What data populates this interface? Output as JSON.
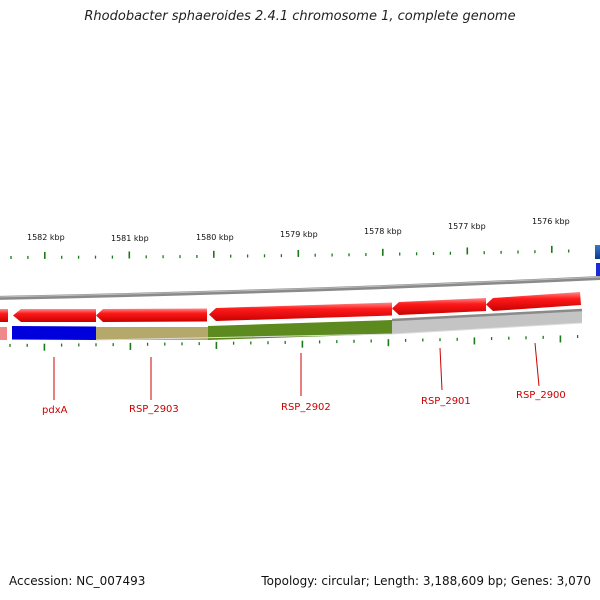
{
  "title": "Rhodobacter sphaeroides 2.4.1 chromosome 1, complete genome",
  "footer": {
    "accession": "Accession: NC_007493",
    "summary": "Topology: circular; Length: 3,188,609 bp; Genes: 3,070"
  },
  "scale_labels": [
    "1582 kbp",
    "1581 kbp",
    "1580 kbp",
    "1579 kbp",
    "1578 kbp",
    "1577 kbp",
    "1576 kbp"
  ],
  "gene_labels": [
    "pdxA",
    "RSP_2903",
    "RSP_2902",
    "RSP_2901",
    "RSP_2900"
  ],
  "colors": {
    "forward_gene": "#ee1111",
    "backbone": "#888888",
    "cog_blue": "#0000dd",
    "cog_khaki": "#b4a86a",
    "cog_olive": "#5c8a1e",
    "cog_gray": "#c4c4c4",
    "tick": "#1a7a1a",
    "label": "#cc0000"
  }
}
